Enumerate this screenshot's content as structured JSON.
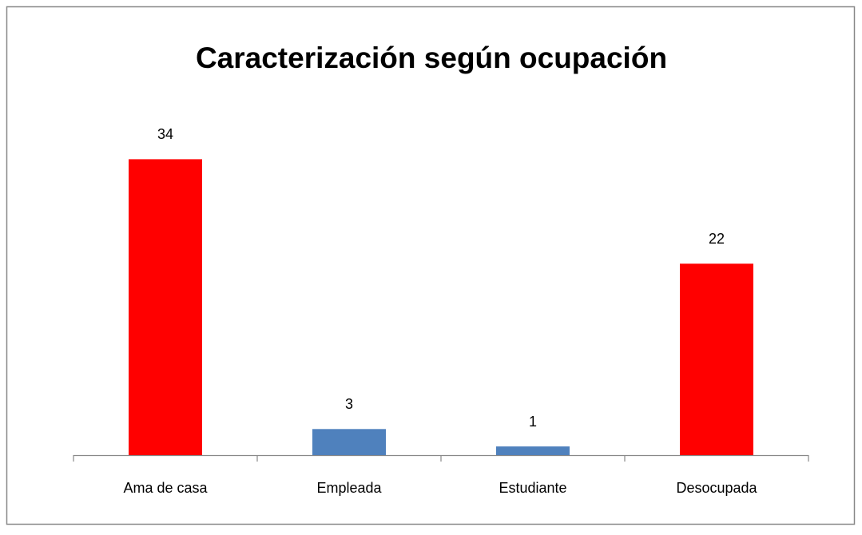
{
  "chart_data": {
    "type": "bar",
    "title": "Caracterización según ocupación",
    "categories": [
      "Ama de casa",
      "Empleada",
      "Estudiante",
      "Desocupada"
    ],
    "values": [
      34,
      3,
      1,
      22
    ],
    "colors": [
      "#ff0000",
      "#4f81bd",
      "#4f81bd",
      "#ff0000"
    ],
    "ylim": [
      0,
      40
    ]
  }
}
